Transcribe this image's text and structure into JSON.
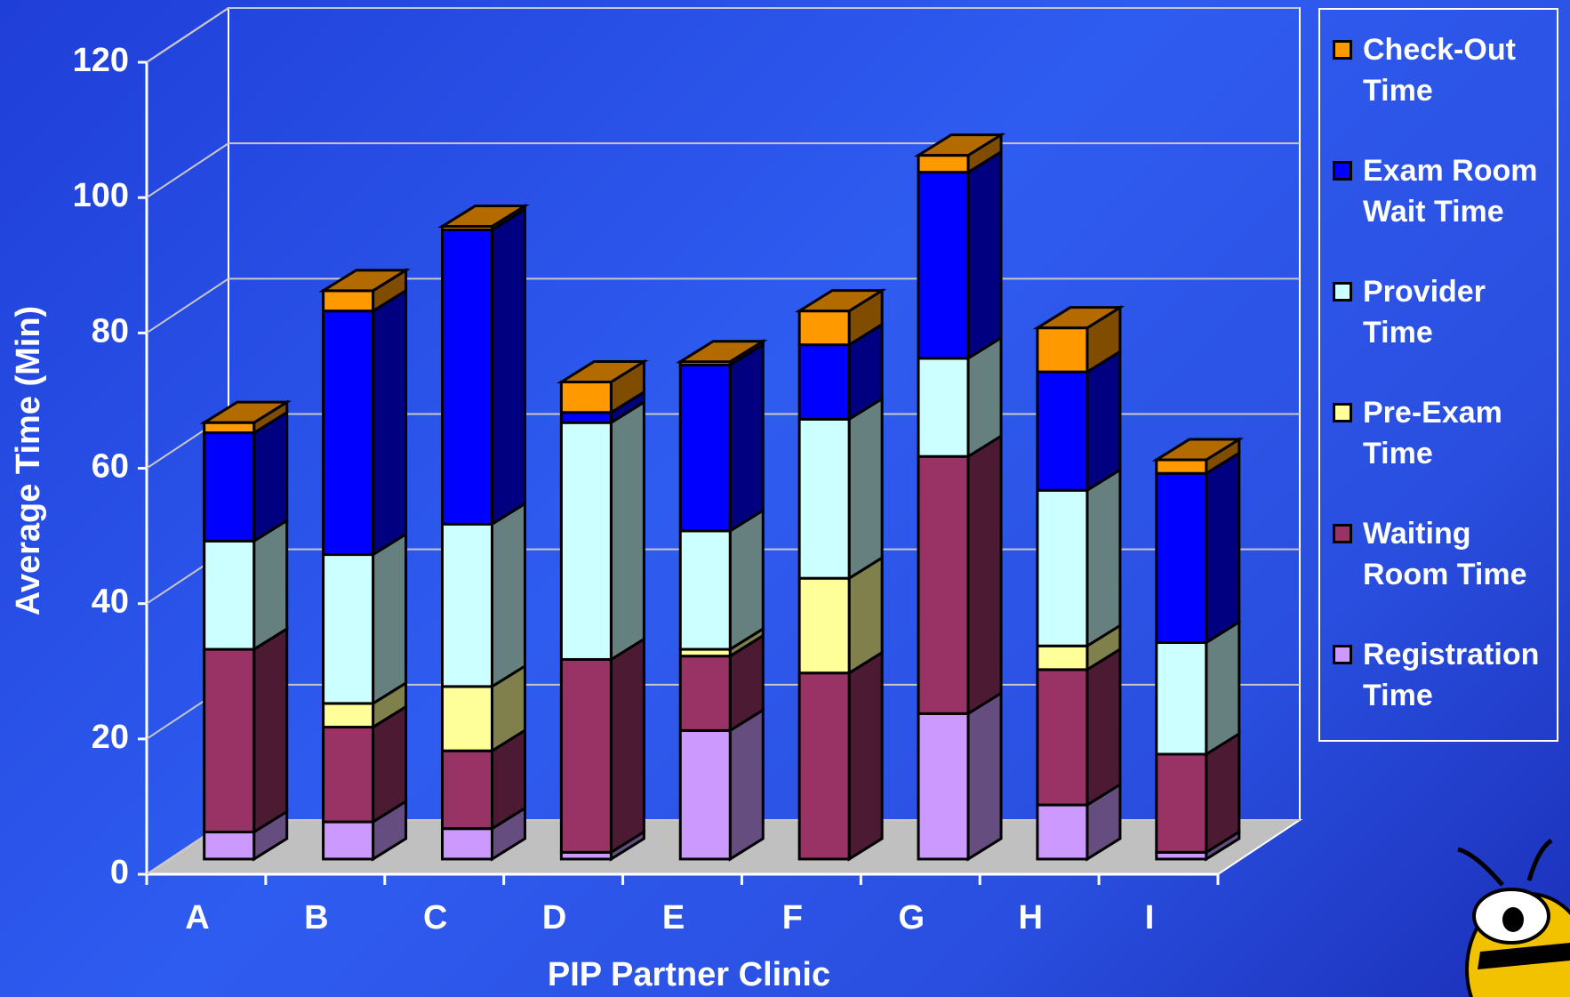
{
  "chart_data": {
    "type": "bar3d_stacked",
    "x_label": "PIP Partner Clinic",
    "y_label": "Average Time (Min)",
    "categories": [
      "A",
      "B",
      "C",
      "D",
      "E",
      "F",
      "G",
      "H",
      "I"
    ],
    "series": [
      {
        "name": "Registration Time",
        "color": "#cc99ff",
        "values": [
          4,
          5.5,
          4.5,
          1,
          19,
          0,
          21.5,
          8,
          1
        ]
      },
      {
        "name": "Waiting Room Time",
        "color": "#993366",
        "values": [
          27,
          14,
          11.5,
          28.5,
          11,
          27.5,
          38,
          20,
          14.5
        ]
      },
      {
        "name": "Pre-Exam Time",
        "color": "#ffff99",
        "values": [
          0,
          3.5,
          9.5,
          0,
          1,
          14,
          0,
          3.5,
          0
        ]
      },
      {
        "name": "Provider Time",
        "color": "#ccffff",
        "values": [
          16,
          22,
          24,
          35,
          17.5,
          23.5,
          14.5,
          23,
          16.5
        ]
      },
      {
        "name": "Exam Room Wait Time",
        "color": "#0000ff",
        "values": [
          16,
          36,
          43.5,
          1.5,
          24.5,
          11,
          27.5,
          17.5,
          25
        ]
      },
      {
        "name": "Check-Out Time",
        "color": "#ff9900",
        "values": [
          1.5,
          3,
          0.5,
          4.5,
          0.5,
          5,
          2.5,
          6.5,
          2
        ]
      }
    ],
    "ylim": [
      0,
      120
    ],
    "yticks": [
      0,
      20,
      40,
      60,
      80,
      100,
      120
    ],
    "grid": true
  }
}
